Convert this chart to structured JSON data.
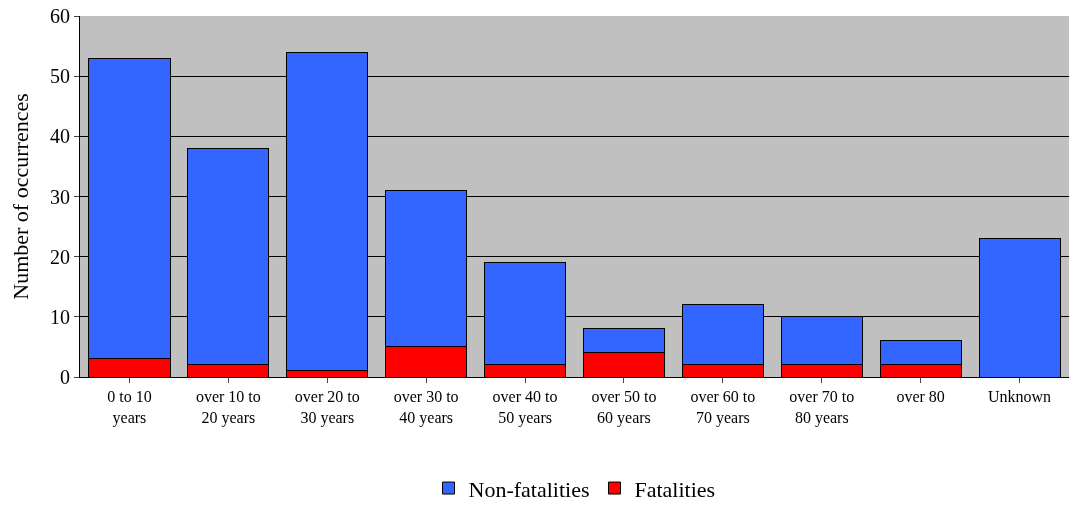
{
  "chart_data": {
    "type": "bar",
    "stacked": true,
    "ylabel": "Number of occurrences",
    "categories": [
      "0 to 10 years",
      "over 10 to 20 years",
      "over 20 to 30 years",
      "over 30 to 40 years",
      "over 40 to 50 years",
      "over 50 to 60 years",
      "over 60 to 70 years",
      "over 70 to 80 years",
      "over 80",
      "Unknown"
    ],
    "series": [
      {
        "name": "Fatalities",
        "color": "#ff0000",
        "values": [
          3,
          2,
          1,
          5,
          2,
          4,
          2,
          2,
          2,
          0
        ]
      },
      {
        "name": "Non-fatalities",
        "color": "#3366ff",
        "values": [
          50,
          36,
          53,
          26,
          17,
          4,
          10,
          8,
          4,
          23
        ]
      }
    ],
    "ylim": [
      0,
      60
    ],
    "yticks": [
      0,
      10,
      20,
      30,
      40,
      50,
      60
    ],
    "grid": "y",
    "legend": "bottom"
  }
}
